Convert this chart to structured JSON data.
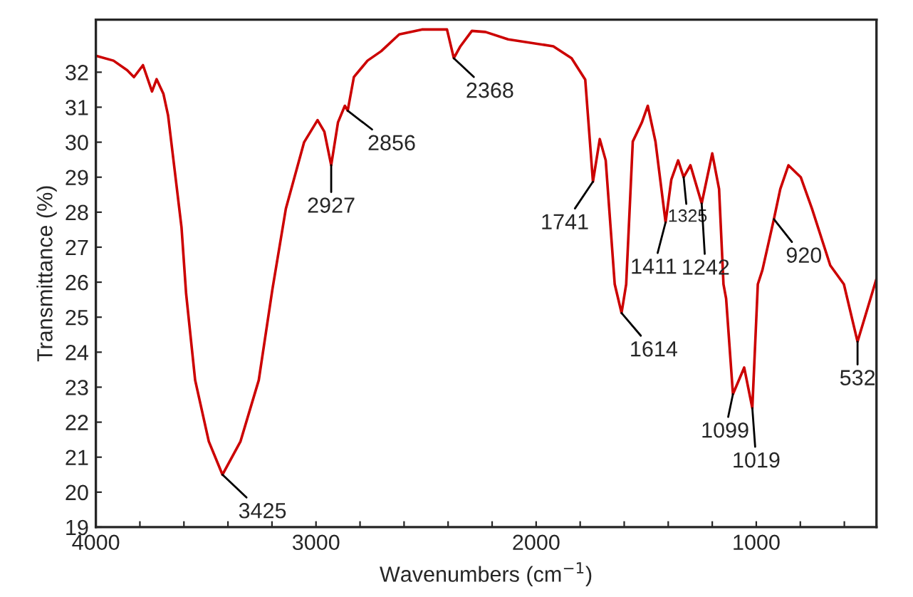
{
  "chart_data": {
    "type": "line",
    "xlabel": "Wavenumbers (cm$^{−1}$)",
    "ylabel": "Transmittance (%)",
    "x": [
      4000,
      3920,
      3858,
      3827,
      3786,
      3745,
      3724,
      3693,
      3672,
      3642,
      3611,
      3590,
      3549,
      3487,
      3425,
      3343,
      3260,
      3198,
      3137,
      3054,
      2993,
      2962,
      2931,
      2900,
      2869,
      2856,
      2828,
      2766,
      2704,
      2622,
      2519,
      2405,
      2374,
      2344,
      2292,
      2230,
      2127,
      1922,
      1839,
      1777,
      1742,
      1711,
      1684,
      1643,
      1612,
      1591,
      1561,
      1520,
      1493,
      1458,
      1412,
      1386,
      1355,
      1330,
      1299,
      1248,
      1200,
      1169,
      1149,
      1137,
      1106,
      1055,
      1018,
      993,
      972,
      920,
      891,
      854,
      798,
      747,
      664,
      602,
      540,
      454
    ],
    "series": [
      {
        "color": "#cc0000",
        "values": [
          32.47,
          32.33,
          32.06,
          31.86,
          32.2,
          31.45,
          31.8,
          31.38,
          30.77,
          29.2,
          27.57,
          25.67,
          23.2,
          21.45,
          20.5,
          21.45,
          23.2,
          25.8,
          28.1,
          30.0,
          30.63,
          30.3,
          29.34,
          30.57,
          31.04,
          30.9,
          31.86,
          32.33,
          32.6,
          33.08,
          33.22,
          33.22,
          32.4,
          32.74,
          33.18,
          33.15,
          32.94,
          32.74,
          32.4,
          31.79,
          28.87,
          30.09,
          29.48,
          25.94,
          25.12,
          25.94,
          30.02,
          30.56,
          31.04,
          30.02,
          27.71,
          28.93,
          29.48,
          29.0,
          29.34,
          28.25,
          29.68,
          28.66,
          25.94,
          25.53,
          22.8,
          23.56,
          22.4,
          25.94,
          26.35,
          27.8,
          28.66,
          29.34,
          29.0,
          28.1,
          26.48,
          25.94,
          24.3,
          26.1
        ]
      }
    ],
    "xlim": [
      4000,
      454
    ],
    "ylim": [
      19,
      33.5
    ],
    "xticks": [
      4000,
      {
        "value": 3800,
        "label": null
      },
      {
        "value": 3600,
        "label": null
      },
      {
        "value": 3400,
        "label": null
      },
      {
        "value": 3200,
        "label": null
      },
      3000,
      {
        "value": 2800,
        "label": null
      },
      {
        "value": 2600,
        "label": null
      },
      {
        "value": 2400,
        "label": null
      },
      {
        "value": 2200,
        "label": null
      },
      2000,
      {
        "value": 1800,
        "label": null
      },
      {
        "value": 1600,
        "label": null
      },
      {
        "value": 1400,
        "label": null
      },
      {
        "value": 1200,
        "label": null
      },
      1000,
      {
        "value": 800,
        "label": null
      },
      {
        "value": 600,
        "label": null
      }
    ],
    "yticks": [
      19,
      20,
      21,
      22,
      23,
      24,
      25,
      26,
      27,
      28,
      29,
      30,
      31,
      32
    ],
    "annotations": [
      {
        "text": "3425",
        "x": 3425,
        "y": 20.5
      },
      {
        "text": "2927",
        "x": 2931,
        "y": 29.34
      },
      {
        "text": "2856",
        "x": 2856,
        "y": 30.9
      },
      {
        "text": "2368",
        "x": 2374,
        "y": 32.4
      },
      {
        "text": "1741",
        "x": 1742,
        "y": 28.87
      },
      {
        "text": "1614",
        "x": 1612,
        "y": 25.12
      },
      {
        "text": "1411",
        "x": 1412,
        "y": 27.71
      },
      {
        "text": "1325",
        "x": 1330,
        "y": 29.0
      },
      {
        "text": "1242",
        "x": 1248,
        "y": 28.25
      },
      {
        "text": "1099",
        "x": 1106,
        "y": 22.8
      },
      {
        "text": "1019",
        "x": 1018,
        "y": 22.4
      },
      {
        "text": "920",
        "x": 920,
        "y": 27.8
      },
      {
        "text": "532",
        "x": 540,
        "y": 24.3
      }
    ]
  }
}
